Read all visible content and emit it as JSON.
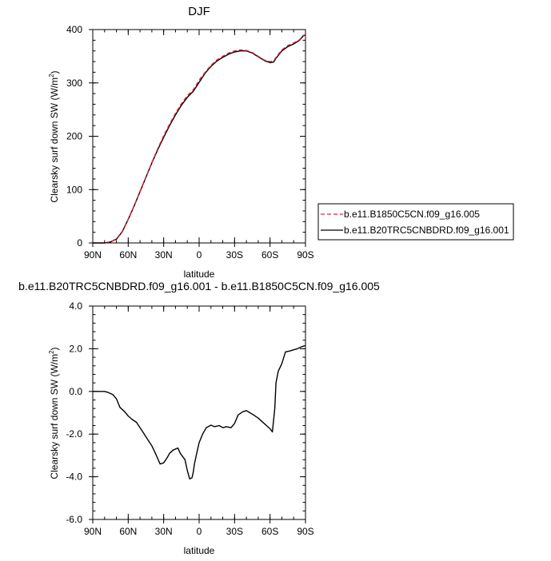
{
  "chart_data": [
    {
      "type": "line",
      "title": "DJF",
      "xlabel": "latitude",
      "ylabel": "Clearsky surf down SW (W/m",
      "ylabel_sup": "2",
      "ylabel_end": ")",
      "x_ticks": [
        -90,
        -60,
        -30,
        0,
        30,
        60,
        90
      ],
      "x_tick_labels": [
        "90N",
        "60N",
        "30N",
        "0",
        "30S",
        "60S",
        "90S"
      ],
      "xlim": [
        -90,
        90
      ],
      "y_ticks": [
        0,
        100,
        200,
        300,
        400
      ],
      "y_tick_labels": [
        "0",
        "100",
        "200",
        "300",
        "400"
      ],
      "ylim": [
        0,
        400
      ],
      "legend_position": "right",
      "series": [
        {
          "name": "b.e11.B1850C5CN.f09_g16.005",
          "color": "#e0283c",
          "dash": "dashed",
          "x": [
            -90,
            -85,
            -80,
            -75,
            -70,
            -65,
            -60,
            -55,
            -50,
            -45,
            -40,
            -35,
            -30,
            -25,
            -20,
            -15,
            -10,
            -5,
            0,
            5,
            10,
            15,
            20,
            25,
            30,
            35,
            40,
            45,
            50,
            55,
            60,
            63,
            65,
            70,
            75,
            80,
            85,
            88,
            90
          ],
          "y": [
            0,
            0,
            0,
            2,
            8,
            22,
            45,
            70,
            97,
            124,
            151,
            177,
            201,
            223,
            243,
            261,
            276,
            287,
            305,
            320,
            333,
            343,
            350,
            356,
            360,
            362,
            361,
            357,
            350,
            343,
            340,
            341,
            348,
            362,
            370,
            375,
            381,
            389,
            390
          ]
        },
        {
          "name": "b.e11.B20TRC5CNBDRD.f09_g16.001",
          "color": "#000000",
          "dash": "solid",
          "x": [
            -90,
            -85,
            -80,
            -75,
            -70,
            -65,
            -60,
            -55,
            -50,
            -45,
            -40,
            -35,
            -30,
            -25,
            -20,
            -15,
            -10,
            -5,
            0,
            5,
            10,
            15,
            20,
            25,
            30,
            35,
            40,
            45,
            50,
            55,
            60,
            63,
            65,
            70,
            75,
            80,
            85,
            88,
            90
          ],
          "y": [
            0,
            0,
            0,
            2,
            7,
            21,
            44,
            69,
            96,
            123,
            150,
            175,
            198,
            220,
            240,
            258,
            273,
            284,
            301,
            318,
            331,
            341,
            348,
            354,
            358,
            360,
            360,
            356,
            349,
            342,
            338,
            339,
            346,
            360,
            368,
            373,
            380,
            388,
            390
          ]
        }
      ]
    },
    {
      "type": "line",
      "title": "b.e11.B20TRC5CNBDRD.f09_g16.001 - b.e11.B1850C5CN.f09_g16.005",
      "xlabel": "latitude",
      "ylabel": "Clearsky surf down SW (W/m",
      "ylabel_sup": "2",
      "ylabel_end": ")",
      "x_ticks": [
        -90,
        -60,
        -30,
        0,
        30,
        60,
        90
      ],
      "x_tick_labels": [
        "90N",
        "60N",
        "30N",
        "0",
        "30S",
        "60S",
        "90S"
      ],
      "xlim": [
        -90,
        90
      ],
      "y_ticks": [
        -6,
        -4,
        -2,
        0,
        2,
        4
      ],
      "y_tick_labels": [
        "-6.0",
        "-4.0",
        "-2.0",
        "0.0",
        "2.0",
        "4.0"
      ],
      "ylim": [
        -6,
        4
      ],
      "series": [
        {
          "color": "#000000",
          "x": [
            -90,
            -85,
            -80,
            -77,
            -73,
            -70,
            -67,
            -63,
            -60,
            -57,
            -53,
            -50,
            -47,
            -43,
            -40,
            -37,
            -33,
            -30,
            -27,
            -25,
            -22,
            -18,
            -16,
            -14,
            -12,
            -10,
            -8,
            -6,
            -5,
            -4,
            -2,
            0,
            3,
            6,
            10,
            13,
            17,
            20,
            23,
            27,
            30,
            33,
            37,
            40,
            43,
            46,
            50,
            53,
            57,
            60,
            62,
            64,
            65,
            67,
            70,
            73,
            77,
            80,
            83,
            87,
            90
          ],
          "y": [
            0,
            0,
            0,
            -0.05,
            -0.15,
            -0.35,
            -0.75,
            -0.95,
            -1.15,
            -1.3,
            -1.45,
            -1.7,
            -1.95,
            -2.3,
            -2.55,
            -2.9,
            -3.4,
            -3.35,
            -3.1,
            -2.9,
            -2.75,
            -2.65,
            -2.9,
            -3.05,
            -3.2,
            -3.7,
            -4.1,
            -4.05,
            -3.8,
            -3.4,
            -2.9,
            -2.4,
            -2.0,
            -1.7,
            -1.58,
            -1.65,
            -1.6,
            -1.7,
            -1.65,
            -1.7,
            -1.5,
            -1.1,
            -0.95,
            -0.9,
            -1.0,
            -1.1,
            -1.25,
            -1.4,
            -1.6,
            -1.75,
            -1.9,
            -0.8,
            0.4,
            0.95,
            1.3,
            1.85,
            1.9,
            1.95,
            2.0,
            2.1,
            2.15
          ]
        }
      ]
    }
  ]
}
